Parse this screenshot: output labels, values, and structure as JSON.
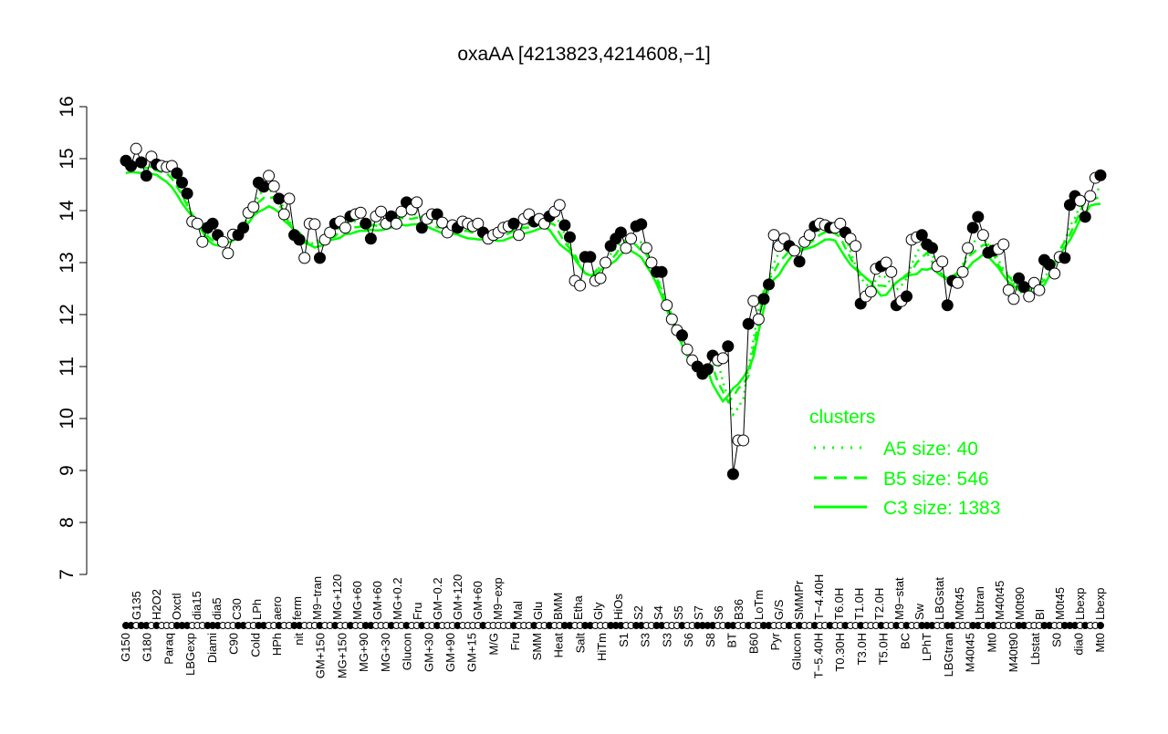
{
  "chart_data": {
    "type": "line",
    "title": "oxaAA [4213823,4214608,−1]",
    "xlabel": "",
    "ylabel": "",
    "ylim": [
      7,
      16
    ],
    "yticks": [
      7,
      8,
      9,
      10,
      11,
      12,
      13,
      14,
      15,
      16
    ],
    "grid": false,
    "legend_placement": "bottom-right",
    "colors": {
      "data": "#000000",
      "clusters": "#00ff00"
    },
    "values": [
      14.96,
      14.86,
      15.19,
      14.93,
      14.67,
      15.04,
      14.89,
      14.86,
      14.84,
      14.86,
      14.72,
      14.54,
      14.33,
      13.79,
      13.75,
      13.4,
      13.67,
      13.75,
      13.53,
      13.4,
      13.18,
      13.54,
      13.53,
      13.67,
      13.96,
      14.07,
      14.54,
      14.46,
      14.67,
      14.47,
      14.23,
      13.93,
      14.23,
      13.53,
      13.44,
      13.09,
      13.75,
      13.74,
      13.09,
      13.44,
      13.58,
      13.75,
      13.79,
      13.67,
      13.89,
      13.93,
      13.96,
      13.75,
      13.46,
      13.89,
      13.98,
      13.75,
      13.89,
      13.75,
      13.98,
      14.16,
      14.02,
      14.16,
      13.67,
      13.84,
      13.93,
      13.93,
      13.77,
      13.58,
      13.72,
      13.67,
      13.79,
      13.75,
      13.7,
      13.75,
      13.58,
      13.46,
      13.53,
      13.58,
      13.67,
      13.7,
      13.75,
      13.53,
      13.84,
      13.93,
      13.79,
      13.84,
      13.75,
      13.89,
      13.98,
      14.11,
      13.72,
      13.49,
      12.65,
      12.56,
      13.11,
      13.11,
      12.65,
      12.7,
      13.0,
      13.32,
      13.46,
      13.58,
      13.28,
      13.46,
      13.7,
      13.74,
      13.28,
      13.0,
      12.82,
      12.82,
      12.18,
      11.91,
      11.7,
      11.6,
      11.33,
      11.12,
      11.0,
      10.86,
      10.95,
      11.21,
      11.12,
      11.16,
      11.39,
      8.93,
      9.58,
      9.58,
      11.82,
      12.26,
      11.91,
      12.3,
      12.58,
      13.53,
      13.32,
      13.46,
      13.32,
      13.23,
      13.02,
      13.4,
      13.53,
      13.7,
      13.75,
      13.72,
      13.67,
      13.67,
      13.75,
      13.58,
      13.46,
      13.32,
      12.21,
      12.35,
      12.44,
      12.88,
      12.93,
      13.0,
      12.82,
      12.18,
      12.26,
      12.35,
      13.44,
      13.49,
      13.53,
      13.35,
      13.28,
      12.93,
      13.02,
      12.18,
      12.65,
      12.61,
      12.82,
      13.28,
      13.67,
      13.88,
      13.53,
      13.19,
      13.23,
      13.26,
      13.35,
      12.47,
      12.3,
      12.7,
      12.53,
      12.35,
      12.61,
      12.47,
      13.05,
      12.96,
      12.79,
      13.11,
      13.09,
      14.11,
      14.28,
      14.19,
      13.88,
      14.28,
      14.63,
      14.68
    ],
    "filled": [
      1,
      1,
      0,
      1,
      1,
      0,
      1,
      0,
      0,
      0,
      1,
      1,
      1,
      0,
      0,
      0,
      1,
      1,
      1,
      0,
      0,
      0,
      1,
      1,
      0,
      0,
      1,
      1,
      0,
      0,
      1,
      0,
      0,
      1,
      1,
      0,
      0,
      0,
      1,
      0,
      0,
      1,
      0,
      0,
      1,
      0,
      0,
      1,
      1,
      0,
      0,
      0,
      1,
      0,
      0,
      1,
      0,
      0,
      1,
      0,
      0,
      1,
      0,
      0,
      0,
      1,
      0,
      0,
      0,
      0,
      1,
      0,
      0,
      0,
      0,
      0,
      1,
      0,
      0,
      0,
      1,
      0,
      0,
      1,
      0,
      0,
      1,
      1,
      0,
      0,
      1,
      1,
      0,
      0,
      0,
      1,
      1,
      1,
      0,
      0,
      1,
      1,
      0,
      0,
      1,
      1,
      0,
      0,
      0,
      1,
      0,
      0,
      1,
      1,
      1,
      1,
      0,
      0,
      1,
      1,
      0,
      0,
      1,
      0,
      0,
      1,
      1,
      0,
      0,
      0,
      1,
      0,
      1,
      0,
      0,
      1,
      0,
      0,
      1,
      0,
      0,
      1,
      0,
      0,
      1,
      0,
      0,
      0,
      1,
      0,
      0,
      1,
      0,
      1,
      0,
      0,
      1,
      1,
      1,
      0,
      0,
      1,
      1,
      0,
      0,
      0,
      1,
      1,
      0,
      1,
      1,
      0,
      0,
      0,
      0,
      1,
      1,
      0,
      0,
      0,
      1,
      1,
      0,
      0,
      1,
      1,
      1,
      0,
      1,
      0,
      0,
      1,
      1,
      1
    ],
    "x_tick_labels_top": [
      "G135",
      "H2O2",
      "Oxctl",
      "dia15",
      "dia5",
      "C30",
      "LPh",
      "aero",
      "ferm",
      "M9−tran",
      "MG+120",
      "MG+60",
      "GM+60",
      "MG+0.2",
      "Fru",
      "GM−0.2",
      "GM+120",
      "GM+60",
      "M9−exp",
      "Mal",
      "Glu",
      "BMM",
      "Etha",
      "Gly",
      "HiOs",
      "S2",
      "S4",
      "S5",
      "S7",
      "S6",
      "B36",
      "LoTm",
      "G/S",
      "SMMPr",
      "T−4.40H",
      "T6.0H",
      "T1.0H",
      "T2.0H",
      "M9−stat",
      "Sw",
      "LBGstat",
      "M0t45",
      "Lbtran",
      "M40t45",
      "M0t90",
      "BI",
      "M0t45",
      "Lbexp",
      "Lbexp"
    ],
    "x_tick_labels_bottom": [
      "G150",
      "G180",
      "Paraq",
      "LBGexp",
      "Diami",
      "C90",
      "Cold",
      "HPh",
      "nit",
      "GM+150",
      "MG+150",
      "MG+90",
      "MG+30",
      "Glucon",
      "GM+30",
      "GM+90",
      "GM+15",
      "M/G",
      "Fru",
      "SMM",
      "Heat",
      "Salt",
      "HiTm",
      "S1",
      "S3",
      "S3",
      "S6",
      "S8",
      "BT",
      "B60",
      "Pyr",
      "Glucon",
      "T−5.40H",
      "T0.30H",
      "T3.0H",
      "T5.0H",
      "BC",
      "LPhT",
      "LBGtran",
      "M40t45",
      "Mt0",
      "M40t90",
      "Lbstat",
      "S0",
      "dia0",
      "Mt0"
    ],
    "legend": {
      "title": "clusters",
      "entries": [
        {
          "label": "A5 size: 40",
          "style": "dotted"
        },
        {
          "label": "B5 size: 546",
          "style": "dashed"
        },
        {
          "label": "C3 size: 1383",
          "style": "solid"
        }
      ]
    }
  }
}
